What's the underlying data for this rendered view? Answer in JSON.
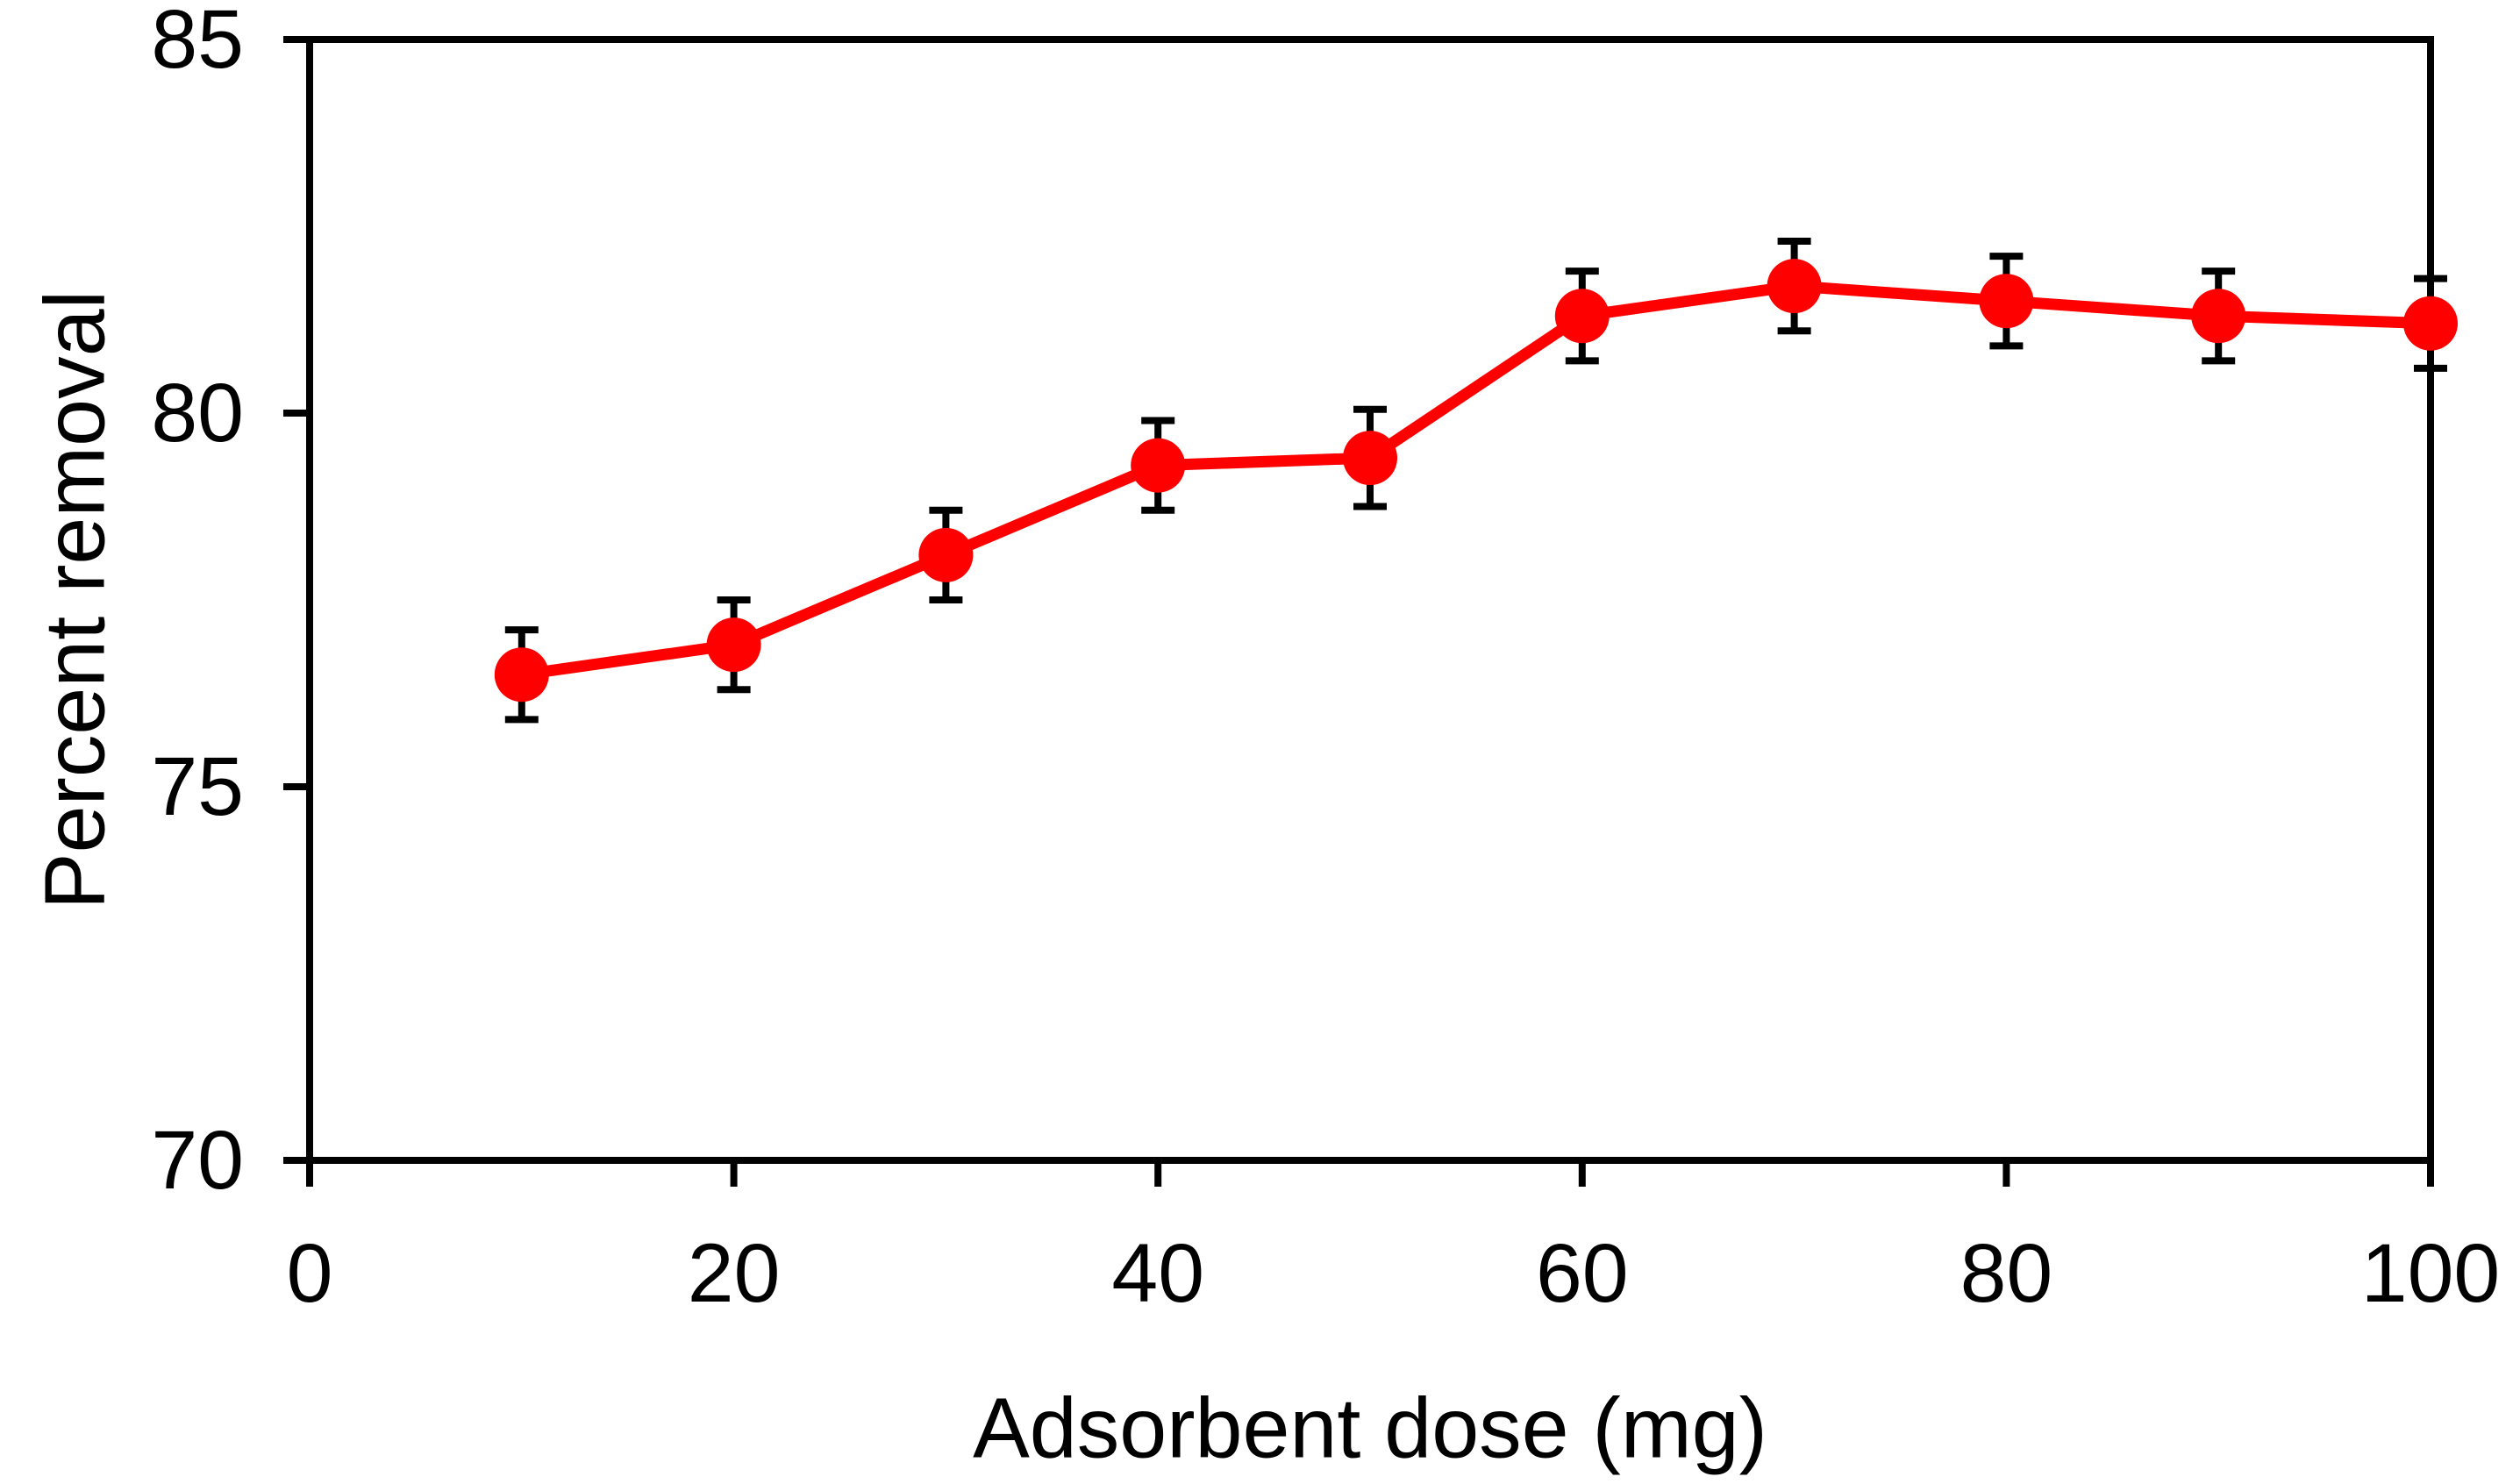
{
  "chart_data": {
    "type": "line",
    "title": "",
    "xlabel": "Adsorbent dose (mg)",
    "ylabel": "Percent removal",
    "x": [
      10,
      20,
      30,
      40,
      50,
      60,
      70,
      80,
      90,
      100
    ],
    "y": [
      76.5,
      76.9,
      78.1,
      79.3,
      79.4,
      81.3,
      81.7,
      81.5,
      81.3,
      81.2
    ],
    "yerr": [
      0.6,
      0.6,
      0.6,
      0.6,
      0.65,
      0.6,
      0.6,
      0.6,
      0.6,
      0.6
    ],
    "xlim": [
      0,
      100
    ],
    "ylim": [
      70,
      85
    ],
    "xticks": [
      0,
      20,
      40,
      60,
      80,
      100
    ],
    "yticks": [
      70,
      75,
      80,
      85
    ],
    "grid": false,
    "legend": false,
    "marker": "circle",
    "line_color": "#ff0000",
    "marker_color": "#ff0000",
    "error_bar_color": "#000000",
    "axis_color": "#000000",
    "background_color": "#ffffff"
  }
}
